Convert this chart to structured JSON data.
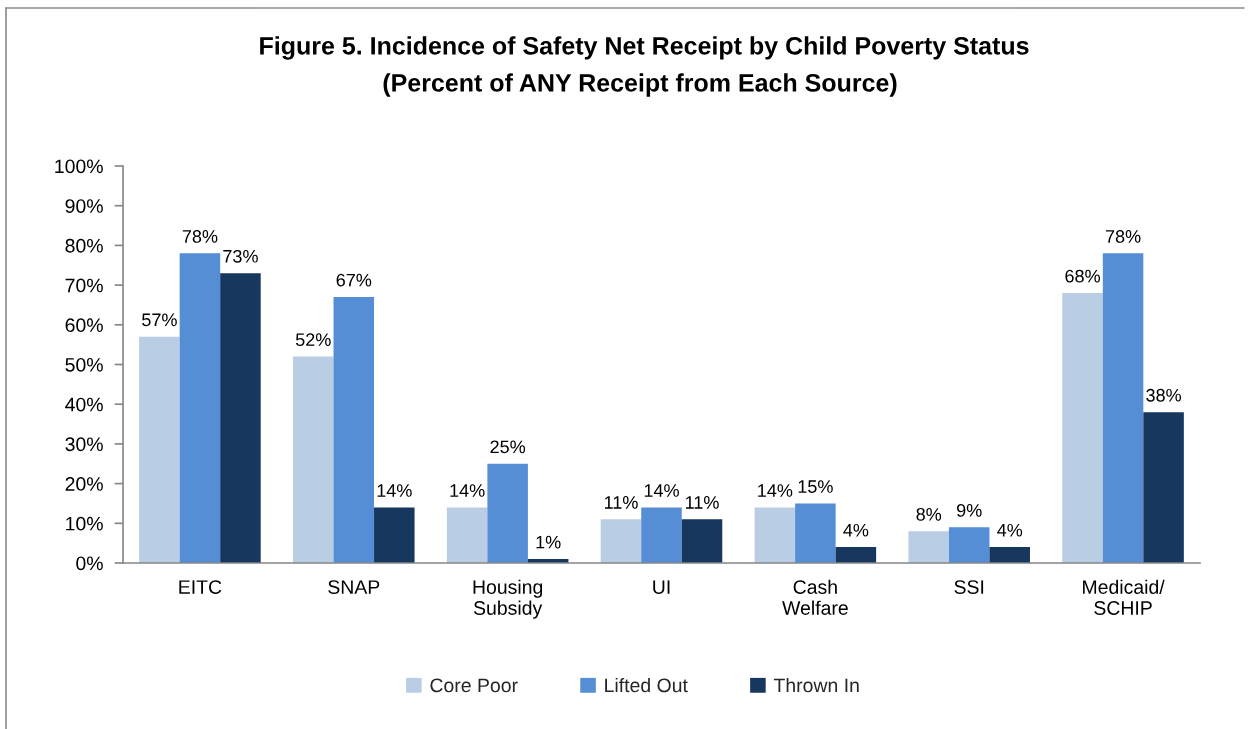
{
  "chart_data": {
    "type": "bar",
    "title": "Figure 5. Incidence of Safety Net Receipt by Child Poverty Status",
    "subtitle": "(Percent of ANY Receipt from Each Source)",
    "categories": [
      "EITC",
      "SNAP",
      "Housing\nSubsidy",
      "UI",
      "Cash\nWelfare",
      "SSI",
      "Medicaid/\nSCHIP"
    ],
    "series": [
      {
        "name": "Core Poor",
        "color": "#b9cde5",
        "values": [
          57,
          52,
          14,
          11,
          14,
          8,
          68
        ],
        "value_labels": [
          "57%",
          "52%",
          "14%",
          "11%",
          "14%",
          "8%",
          "68%"
        ]
      },
      {
        "name": "Lifted Out",
        "color": "#558ed5",
        "values": [
          78,
          67,
          25,
          14,
          15,
          9,
          78
        ],
        "value_labels": [
          "78%",
          "67%",
          "25%",
          "14%",
          "15%",
          "9%",
          "78%"
        ]
      },
      {
        "name": "Thrown In",
        "color": "#17375e",
        "values": [
          73,
          14,
          1,
          11,
          4,
          4,
          38
        ],
        "value_labels": [
          "73%",
          "14%",
          "1%",
          "11%",
          "4%",
          "4%",
          "38%"
        ]
      }
    ],
    "ylim": [
      0,
      100
    ],
    "yticks": [
      {
        "value": 0,
        "label": "0%"
      },
      {
        "value": 10,
        "label": "10%"
      },
      {
        "value": 20,
        "label": "20%"
      },
      {
        "value": 30,
        "label": "30%"
      },
      {
        "value": 40,
        "label": "40%"
      },
      {
        "value": 50,
        "label": "50%"
      },
      {
        "value": 60,
        "label": "60%"
      },
      {
        "value": 70,
        "label": "70%"
      },
      {
        "value": 80,
        "label": "80%"
      },
      {
        "value": 90,
        "label": "90%"
      },
      {
        "value": 100,
        "label": "100%"
      }
    ],
    "grid": false,
    "legend": "bottom"
  }
}
